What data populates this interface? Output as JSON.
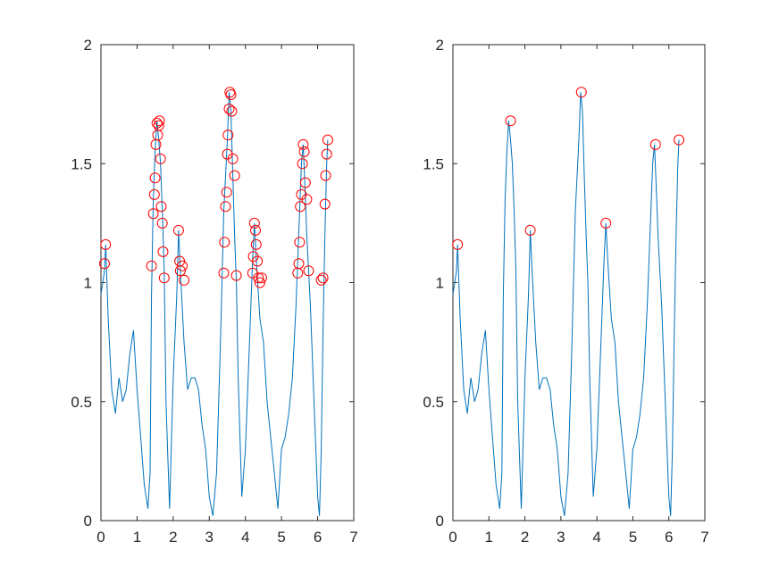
{
  "chart_data": [
    {
      "type": "line",
      "title": "",
      "xlabel": "",
      "ylabel": "",
      "xlim": [
        0,
        7
      ],
      "ylim": [
        0,
        2
      ],
      "xticks": [
        "0",
        "1",
        "2",
        "3",
        "4",
        "5",
        "6",
        "7"
      ],
      "yticks": [
        "0",
        "0.5",
        "1",
        "1.5",
        "2"
      ],
      "grid": false,
      "series_color": "#0072bd",
      "marker_color": "#ff0000",
      "series": [
        {
          "x": [
            0.0,
            0.1,
            0.13,
            0.2,
            0.3,
            0.4,
            0.5,
            0.6,
            0.7,
            0.8,
            0.9,
            1.0,
            1.1,
            1.2,
            1.3,
            1.36,
            1.4,
            1.45,
            1.5,
            1.55,
            1.6,
            1.65,
            1.7,
            1.75,
            1.8,
            1.9,
            2.0,
            2.1,
            2.15,
            2.2,
            2.3,
            2.4,
            2.5,
            2.6,
            2.7,
            2.8,
            2.9,
            3.0,
            3.1,
            3.2,
            3.3,
            3.4,
            3.5,
            3.55,
            3.6,
            3.65,
            3.7,
            3.75,
            3.8,
            3.9,
            4.0,
            4.1,
            4.2,
            4.25,
            4.3,
            4.4,
            4.5,
            4.6,
            4.7,
            4.8,
            4.9,
            5.0,
            5.1,
            5.2,
            5.3,
            5.4,
            5.5,
            5.55,
            5.6,
            5.65,
            5.7,
            5.8,
            5.9,
            6.0,
            6.05,
            6.1,
            6.15,
            6.2,
            6.25,
            6.28
          ],
          "y": [
            0.95,
            1.05,
            1.16,
            0.85,
            0.55,
            0.45,
            0.6,
            0.5,
            0.55,
            0.7,
            0.8,
            0.55,
            0.35,
            0.15,
            0.05,
            0.2,
            0.95,
            1.35,
            1.55,
            1.68,
            1.6,
            1.5,
            1.3,
            1.05,
            0.5,
            0.05,
            0.6,
            0.95,
            1.22,
            1.05,
            0.75,
            0.55,
            0.6,
            0.6,
            0.55,
            0.4,
            0.3,
            0.1,
            0.02,
            0.2,
            0.7,
            1.3,
            1.6,
            1.8,
            1.72,
            1.45,
            1.2,
            1.0,
            0.6,
            0.1,
            0.3,
            0.7,
            1.1,
            1.25,
            1.1,
            0.85,
            0.75,
            0.5,
            0.35,
            0.2,
            0.05,
            0.3,
            0.35,
            0.45,
            0.6,
            0.9,
            1.3,
            1.5,
            1.58,
            1.4,
            1.2,
            0.9,
            0.5,
            0.1,
            0.02,
            0.3,
            0.8,
            1.2,
            1.5,
            1.6
          ]
        }
      ],
      "markers": {
        "x": [
          0.1,
          0.13,
          1.4,
          1.45,
          1.48,
          1.5,
          1.52,
          1.55,
          1.57,
          1.6,
          1.62,
          1.65,
          1.67,
          1.7,
          1.72,
          1.75,
          2.15,
          2.18,
          2.2,
          2.25,
          2.3,
          3.4,
          3.42,
          3.45,
          3.48,
          3.5,
          3.52,
          3.55,
          3.57,
          3.6,
          3.62,
          3.65,
          3.7,
          3.75,
          4.2,
          4.22,
          4.25,
          4.28,
          4.3,
          4.33,
          4.36,
          4.4,
          4.45,
          5.45,
          5.48,
          5.5,
          5.52,
          5.55,
          5.58,
          5.6,
          5.63,
          5.66,
          5.7,
          5.75,
          6.1,
          6.15,
          6.2,
          6.22,
          6.25,
          6.28
        ],
        "y": [
          1.08,
          1.16,
          1.07,
          1.29,
          1.37,
          1.44,
          1.58,
          1.67,
          1.62,
          1.66,
          1.68,
          1.52,
          1.32,
          1.25,
          1.13,
          1.02,
          1.22,
          1.09,
          1.05,
          1.07,
          1.01,
          1.04,
          1.17,
          1.32,
          1.38,
          1.54,
          1.62,
          1.73,
          1.8,
          1.79,
          1.72,
          1.52,
          1.45,
          1.03,
          1.04,
          1.11,
          1.25,
          1.22,
          1.16,
          1.09,
          1.02,
          1.0,
          1.02,
          1.04,
          1.08,
          1.17,
          1.32,
          1.37,
          1.5,
          1.58,
          1.55,
          1.42,
          1.35,
          1.05,
          1.01,
          1.02,
          1.33,
          1.45,
          1.54,
          1.6
        ]
      }
    },
    {
      "type": "line",
      "title": "",
      "xlabel": "",
      "ylabel": "",
      "xlim": [
        0,
        7
      ],
      "ylim": [
        0,
        2
      ],
      "xticks": [
        "0",
        "1",
        "2",
        "3",
        "4",
        "5",
        "6",
        "7"
      ],
      "yticks": [
        "0",
        "0.5",
        "1",
        "1.5",
        "2"
      ],
      "grid": false,
      "series_color": "#0072bd",
      "marker_color": "#ff0000",
      "series": [
        {
          "x": [
            0.0,
            0.1,
            0.13,
            0.2,
            0.3,
            0.4,
            0.5,
            0.6,
            0.7,
            0.8,
            0.9,
            1.0,
            1.1,
            1.2,
            1.3,
            1.36,
            1.4,
            1.45,
            1.5,
            1.55,
            1.6,
            1.65,
            1.7,
            1.75,
            1.8,
            1.9,
            2.0,
            2.1,
            2.15,
            2.2,
            2.3,
            2.4,
            2.5,
            2.6,
            2.7,
            2.8,
            2.9,
            3.0,
            3.1,
            3.2,
            3.3,
            3.4,
            3.5,
            3.55,
            3.6,
            3.65,
            3.7,
            3.75,
            3.8,
            3.9,
            4.0,
            4.1,
            4.2,
            4.25,
            4.3,
            4.4,
            4.5,
            4.6,
            4.7,
            4.8,
            4.9,
            5.0,
            5.1,
            5.2,
            5.3,
            5.4,
            5.5,
            5.55,
            5.6,
            5.65,
            5.7,
            5.8,
            5.9,
            6.0,
            6.05,
            6.1,
            6.15,
            6.2,
            6.25,
            6.28
          ],
          "y": [
            0.95,
            1.05,
            1.16,
            0.85,
            0.55,
            0.45,
            0.6,
            0.5,
            0.55,
            0.7,
            0.8,
            0.55,
            0.35,
            0.15,
            0.05,
            0.2,
            0.95,
            1.35,
            1.55,
            1.68,
            1.6,
            1.5,
            1.3,
            1.05,
            0.5,
            0.05,
            0.6,
            0.95,
            1.22,
            1.05,
            0.75,
            0.55,
            0.6,
            0.6,
            0.55,
            0.4,
            0.3,
            0.1,
            0.02,
            0.2,
            0.7,
            1.3,
            1.6,
            1.8,
            1.72,
            1.45,
            1.2,
            1.0,
            0.6,
            0.1,
            0.3,
            0.7,
            1.1,
            1.25,
            1.1,
            0.85,
            0.75,
            0.5,
            0.35,
            0.2,
            0.05,
            0.3,
            0.35,
            0.45,
            0.6,
            0.9,
            1.3,
            1.5,
            1.58,
            1.4,
            1.2,
            0.9,
            0.5,
            0.1,
            0.02,
            0.3,
            0.8,
            1.2,
            1.5,
            1.6
          ]
        }
      ],
      "markers": {
        "x": [
          0.13,
          1.6,
          2.15,
          3.57,
          4.25,
          5.63,
          6.28
        ],
        "y": [
          1.16,
          1.68,
          1.22,
          1.8,
          1.25,
          1.58,
          1.6
        ]
      }
    }
  ]
}
